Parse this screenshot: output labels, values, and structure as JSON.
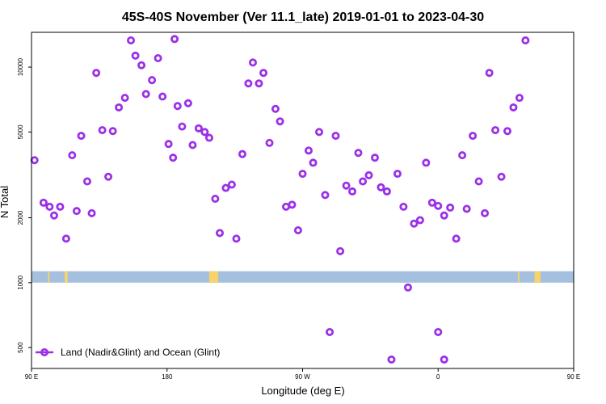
{
  "chart_data": {
    "type": "scatter",
    "title": "45S-40S November (Ver 11.1_late)   2019-01-01 to 2023-04-30",
    "xlabel": "Longitude (deg E)",
    "ylabel": "N Total",
    "xlim": [
      -90,
      270
    ],
    "ylim": [
      400,
      14500
    ],
    "yscale": "log",
    "grid": false,
    "legend_position": "bottom-left",
    "x_ticks": [
      {
        "value": -90,
        "label": "90 E"
      },
      {
        "value": 0,
        "label": "180"
      },
      {
        "value": 90,
        "label": "90 W"
      },
      {
        "value": 180,
        "label": "0"
      },
      {
        "value": 270,
        "label": "90 E"
      }
    ],
    "y_ticks": [
      {
        "value": 500,
        "label": "500"
      },
      {
        "value": 1000,
        "label": "1000"
      },
      {
        "value": 2000,
        "label": "2000"
      },
      {
        "value": 5000,
        "label": "5000"
      },
      {
        "value": 10000,
        "label": "10000"
      }
    ],
    "series": [
      {
        "name": "Land (Nadir&Glint) and Ocean (Glint)",
        "color": "#9b30e8",
        "marker": "open-circle",
        "points": [
          [
            -88,
            3700
          ],
          [
            -82,
            2350
          ],
          [
            -78,
            2250
          ],
          [
            -75,
            2050
          ],
          [
            -71,
            2250
          ],
          [
            -67,
            1600
          ],
          [
            -63,
            3900
          ],
          [
            -60,
            2150
          ],
          [
            -57,
            4800
          ],
          [
            -53,
            2950
          ],
          [
            -50,
            2100
          ],
          [
            -47,
            9400
          ],
          [
            -43,
            5100
          ],
          [
            -39,
            3100
          ],
          [
            -36,
            5050
          ],
          [
            -32,
            6500
          ],
          [
            -28,
            7200
          ],
          [
            -24,
            13300
          ],
          [
            -21,
            11300
          ],
          [
            -17,
            10200
          ],
          [
            -14,
            7500
          ],
          [
            -10,
            8700
          ],
          [
            -6,
            11000
          ],
          [
            -3,
            7300
          ],
          [
            1,
            4400
          ],
          [
            4,
            3800
          ],
          [
            7,
            6600
          ],
          [
            10,
            5300
          ],
          [
            14,
            6800
          ],
          [
            17,
            4350
          ],
          [
            21,
            5200
          ],
          [
            25,
            5000
          ],
          [
            28,
            4700
          ],
          [
            32,
            2450
          ],
          [
            35,
            1700
          ],
          [
            39,
            2750
          ],
          [
            43,
            2850
          ],
          [
            46,
            1600
          ],
          [
            50,
            3950
          ],
          [
            54,
            8400
          ],
          [
            57,
            10500
          ],
          [
            61,
            8400
          ],
          [
            64,
            9400
          ],
          [
            68,
            4450
          ],
          [
            72,
            6400
          ],
          [
            75,
            5600
          ],
          [
            79,
            2250
          ],
          [
            83,
            2300
          ],
          [
            87,
            1750
          ],
          [
            90,
            3200
          ],
          [
            94,
            4100
          ],
          [
            97,
            3600
          ],
          [
            101,
            5000
          ],
          [
            105,
            2550
          ],
          [
            108,
            590
          ],
          [
            112,
            4800
          ],
          [
            115,
            1400
          ],
          [
            119,
            2820
          ],
          [
            123,
            2650
          ],
          [
            127,
            4000
          ],
          [
            130,
            2950
          ],
          [
            134,
            3150
          ],
          [
            138,
            3800
          ],
          [
            142,
            2770
          ],
          [
            146,
            2650
          ],
          [
            149,
            440
          ],
          [
            153,
            3200
          ],
          [
            157,
            2250
          ],
          [
            160,
            950
          ],
          [
            164,
            1880
          ],
          [
            168,
            1950
          ],
          [
            172,
            3600
          ],
          [
            176,
            2350
          ],
          [
            180,
            2270
          ],
          [
            184,
            2050
          ],
          [
            188,
            2230
          ],
          [
            192,
            1600
          ],
          [
            196,
            3900
          ],
          [
            199,
            2200
          ],
          [
            203,
            4800
          ],
          [
            207,
            2950
          ],
          [
            211,
            2100
          ],
          [
            214,
            9400
          ],
          [
            218,
            5100
          ],
          [
            222,
            3100
          ],
          [
            226,
            5050
          ],
          [
            230,
            6500
          ],
          [
            234,
            7200
          ],
          [
            238,
            13300
          ],
          [
            5,
            13500
          ],
          [
            180,
            590
          ],
          [
            184,
            440
          ]
        ]
      }
    ],
    "land_band": {
      "y_range": [
        1000,
        1130
      ],
      "ocean_color": "#a5bfde",
      "land_color": "#f7d36a",
      "land_segments": [
        [
          -79,
          -78
        ],
        [
          -68,
          -66
        ],
        [
          28,
          34
        ],
        [
          233,
          234
        ],
        [
          244,
          248
        ]
      ]
    }
  }
}
